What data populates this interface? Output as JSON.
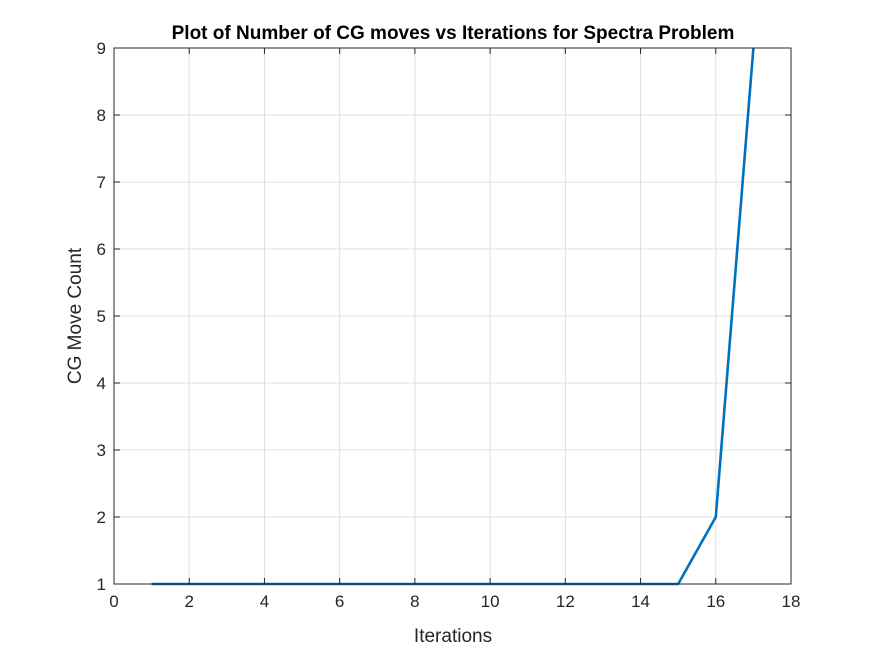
{
  "chart_data": {
    "type": "line",
    "title": "Plot of Number of CG moves vs Iterations for Spectra Problem",
    "xlabel": "Iterations",
    "ylabel": "CG Move Count",
    "xlim": [
      0,
      18
    ],
    "ylim": [
      1,
      9
    ],
    "xticks": [
      0,
      2,
      4,
      6,
      8,
      10,
      12,
      14,
      16,
      18
    ],
    "yticks": [
      1,
      2,
      3,
      4,
      5,
      6,
      7,
      8,
      9
    ],
    "grid": true,
    "series": [
      {
        "color": "#0072bd",
        "x": [
          1,
          2,
          3,
          4,
          5,
          6,
          7,
          8,
          9,
          10,
          11,
          12,
          13,
          14,
          15,
          16,
          17
        ],
        "y": [
          1,
          1,
          1,
          1,
          1,
          1,
          1,
          1,
          1,
          1,
          1,
          1,
          1,
          1,
          1,
          2,
          9
        ]
      }
    ]
  }
}
